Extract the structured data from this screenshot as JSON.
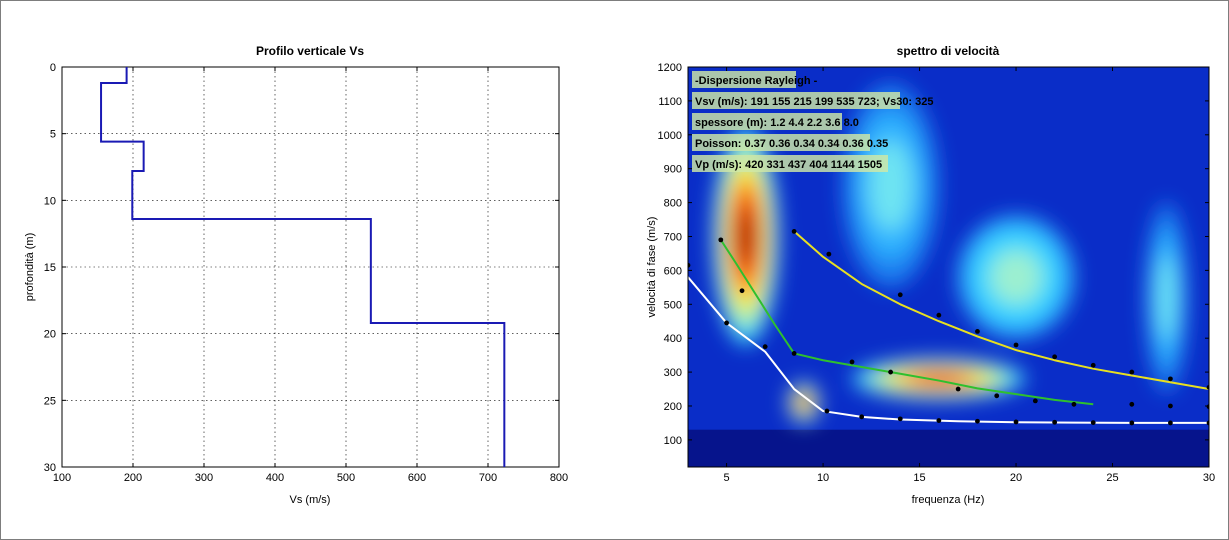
{
  "chart_data": [
    {
      "type": "line",
      "title": "Profilo verticale Vs",
      "xlabel": "Vs (m/s)",
      "ylabel": "profondità (m)",
      "xlim": [
        100,
        800
      ],
      "ylim": [
        30,
        0
      ],
      "y_inverted": true,
      "grid": true,
      "xticks": [
        "100",
        "200",
        "300",
        "400",
        "500",
        "600",
        "700",
        "800"
      ],
      "yticks": [
        "0",
        "5",
        "10",
        "15",
        "20",
        "25",
        "30"
      ],
      "series": [
        {
          "color": "#1a1ab4",
          "x": [
            191,
            191,
            155,
            155,
            215,
            215,
            199,
            199,
            535,
            535,
            723,
            723
          ],
          "y": [
            0,
            1.2,
            1.2,
            5.6,
            5.6,
            7.8,
            7.8,
            11.4,
            11.4,
            19.2,
            19.2,
            30
          ]
        }
      ]
    },
    {
      "type": "heatmap",
      "title": "spettro di velocità",
      "xlabel": "frequenza (Hz)",
      "ylabel": "velocità di fase (m/s)",
      "xlim": [
        3,
        30
      ],
      "ylim": [
        20,
        1200
      ],
      "grid": false,
      "xticks": [
        "5",
        "10",
        "15",
        "20",
        "25",
        "30"
      ],
      "yticks": [
        "100",
        "200",
        "300",
        "400",
        "500",
        "600",
        "700",
        "800",
        "900",
        "1000",
        "1100",
        "1200"
      ],
      "annotations": [
        "-Dispersione Rayleigh -",
        "Vsv (m/s): 191  155  215  199  535  723; Vs30: 325",
        "spessore (m): 1.2   4.4   2.2   3.6   8.0",
        "Poisson: 0.37  0.36  0.34  0.34  0.36  0.35",
        "Vp (m/s): 420   331   437   404   1144  1505"
      ],
      "background_color": "#0a2dc8",
      "high_energy_zones": [
        {
          "cx": 6,
          "cy": 700,
          "rx": 1.7,
          "ry": 320,
          "level": "max"
        },
        {
          "cx": 16,
          "cy": 280,
          "rx": 4.5,
          "ry": 60,
          "level": "high"
        },
        {
          "cx": 9,
          "cy": 210,
          "rx": 0.8,
          "ry": 60,
          "level": "high"
        },
        {
          "cx": 20,
          "cy": 580,
          "rx": 3,
          "ry": 180,
          "level": "medium"
        },
        {
          "cx": 13.5,
          "cy": 850,
          "rx": 2.5,
          "ry": 300,
          "level": "low"
        },
        {
          "cx": 27.8,
          "cy": 520,
          "rx": 1.1,
          "ry": 280,
          "level": "low"
        }
      ],
      "curves": [
        {
          "color": "#ffffff",
          "x": [
            3,
            5,
            7,
            8.5,
            10,
            12,
            14,
            17,
            20,
            23,
            26,
            30
          ],
          "y": [
            580,
            445,
            360,
            250,
            185,
            168,
            160,
            155,
            152,
            151,
            150,
            150
          ]
        },
        {
          "color": "#2ec02e",
          "x": [
            4.7,
            5.5,
            6.5,
            7.5,
            8.5,
            10,
            12,
            14,
            16,
            18,
            20,
            22,
            24
          ],
          "y": [
            690,
            620,
            530,
            440,
            355,
            335,
            315,
            295,
            275,
            252,
            235,
            218,
            205
          ]
        },
        {
          "color": "#e8e020",
          "x": [
            8.5,
            10,
            12,
            14,
            16,
            18,
            20,
            22,
            24,
            26,
            28,
            30
          ],
          "y": [
            715,
            640,
            560,
            500,
            450,
            405,
            365,
            335,
            310,
            290,
            270,
            250
          ]
        }
      ],
      "points": [
        {
          "x": 3,
          "y": 615
        },
        {
          "x": 5,
          "y": 445
        },
        {
          "x": 7,
          "y": 375
        },
        {
          "x": 4.7,
          "y": 690
        },
        {
          "x": 5.8,
          "y": 540
        },
        {
          "x": 8.5,
          "y": 355
        },
        {
          "x": 11.5,
          "y": 330
        },
        {
          "x": 13.5,
          "y": 300
        },
        {
          "x": 17,
          "y": 250
        },
        {
          "x": 19,
          "y": 230
        },
        {
          "x": 21,
          "y": 215
        },
        {
          "x": 23,
          "y": 205
        },
        {
          "x": 8.5,
          "y": 715
        },
        {
          "x": 10.3,
          "y": 648
        },
        {
          "x": 14,
          "y": 528
        },
        {
          "x": 16,
          "y": 468
        },
        {
          "x": 18,
          "y": 420
        },
        {
          "x": 20,
          "y": 380
        },
        {
          "x": 22,
          "y": 345
        },
        {
          "x": 24,
          "y": 320
        },
        {
          "x": 26,
          "y": 300
        },
        {
          "x": 28,
          "y": 280
        },
        {
          "x": 30,
          "y": 255
        },
        {
          "x": 10.2,
          "y": 185
        },
        {
          "x": 12,
          "y": 168
        },
        {
          "x": 14,
          "y": 162
        },
        {
          "x": 16,
          "y": 157
        },
        {
          "x": 18,
          "y": 155
        },
        {
          "x": 20,
          "y": 153
        },
        {
          "x": 22,
          "y": 152
        },
        {
          "x": 24,
          "y": 151
        },
        {
          "x": 26,
          "y": 150
        },
        {
          "x": 28,
          "y": 150
        },
        {
          "x": 30,
          "y": 150
        },
        {
          "x": 26,
          "y": 205
        },
        {
          "x": 28,
          "y": 200
        },
        {
          "x": 30,
          "y": 198
        }
      ]
    }
  ]
}
